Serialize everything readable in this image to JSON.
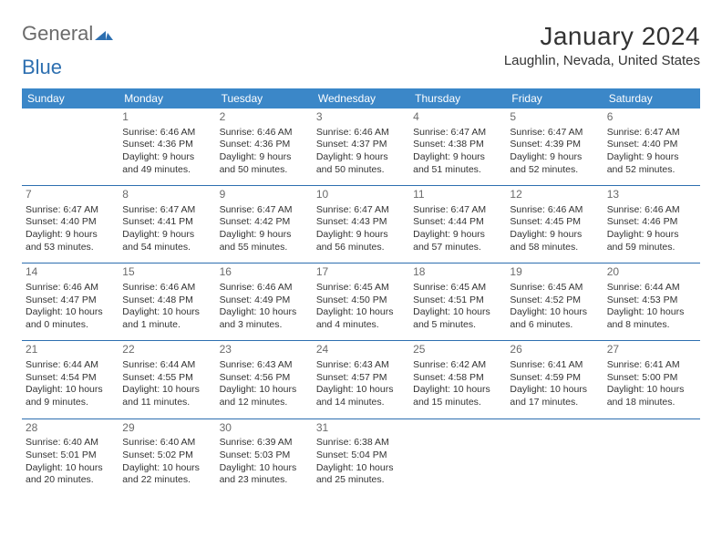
{
  "logo": {
    "general": "General",
    "blue": "Blue",
    "tri_color": "#2d6fb0"
  },
  "title": "January 2024",
  "subtitle": "Laughlin, Nevada, United States",
  "header_bg": "#3b87c8",
  "divider_color": "#2d6fb0",
  "weekdays": [
    "Sunday",
    "Monday",
    "Tuesday",
    "Wednesday",
    "Thursday",
    "Friday",
    "Saturday"
  ],
  "weeks": [
    [
      null,
      {
        "n": "1",
        "sr": "Sunrise: 6:46 AM",
        "ss": "Sunset: 4:36 PM",
        "d1": "Daylight: 9 hours",
        "d2": "and 49 minutes."
      },
      {
        "n": "2",
        "sr": "Sunrise: 6:46 AM",
        "ss": "Sunset: 4:36 PM",
        "d1": "Daylight: 9 hours",
        "d2": "and 50 minutes."
      },
      {
        "n": "3",
        "sr": "Sunrise: 6:46 AM",
        "ss": "Sunset: 4:37 PM",
        "d1": "Daylight: 9 hours",
        "d2": "and 50 minutes."
      },
      {
        "n": "4",
        "sr": "Sunrise: 6:47 AM",
        "ss": "Sunset: 4:38 PM",
        "d1": "Daylight: 9 hours",
        "d2": "and 51 minutes."
      },
      {
        "n": "5",
        "sr": "Sunrise: 6:47 AM",
        "ss": "Sunset: 4:39 PM",
        "d1": "Daylight: 9 hours",
        "d2": "and 52 minutes."
      },
      {
        "n": "6",
        "sr": "Sunrise: 6:47 AM",
        "ss": "Sunset: 4:40 PM",
        "d1": "Daylight: 9 hours",
        "d2": "and 52 minutes."
      }
    ],
    [
      {
        "n": "7",
        "sr": "Sunrise: 6:47 AM",
        "ss": "Sunset: 4:40 PM",
        "d1": "Daylight: 9 hours",
        "d2": "and 53 minutes."
      },
      {
        "n": "8",
        "sr": "Sunrise: 6:47 AM",
        "ss": "Sunset: 4:41 PM",
        "d1": "Daylight: 9 hours",
        "d2": "and 54 minutes."
      },
      {
        "n": "9",
        "sr": "Sunrise: 6:47 AM",
        "ss": "Sunset: 4:42 PM",
        "d1": "Daylight: 9 hours",
        "d2": "and 55 minutes."
      },
      {
        "n": "10",
        "sr": "Sunrise: 6:47 AM",
        "ss": "Sunset: 4:43 PM",
        "d1": "Daylight: 9 hours",
        "d2": "and 56 minutes."
      },
      {
        "n": "11",
        "sr": "Sunrise: 6:47 AM",
        "ss": "Sunset: 4:44 PM",
        "d1": "Daylight: 9 hours",
        "d2": "and 57 minutes."
      },
      {
        "n": "12",
        "sr": "Sunrise: 6:46 AM",
        "ss": "Sunset: 4:45 PM",
        "d1": "Daylight: 9 hours",
        "d2": "and 58 minutes."
      },
      {
        "n": "13",
        "sr": "Sunrise: 6:46 AM",
        "ss": "Sunset: 4:46 PM",
        "d1": "Daylight: 9 hours",
        "d2": "and 59 minutes."
      }
    ],
    [
      {
        "n": "14",
        "sr": "Sunrise: 6:46 AM",
        "ss": "Sunset: 4:47 PM",
        "d1": "Daylight: 10 hours",
        "d2": "and 0 minutes."
      },
      {
        "n": "15",
        "sr": "Sunrise: 6:46 AM",
        "ss": "Sunset: 4:48 PM",
        "d1": "Daylight: 10 hours",
        "d2": "and 1 minute."
      },
      {
        "n": "16",
        "sr": "Sunrise: 6:46 AM",
        "ss": "Sunset: 4:49 PM",
        "d1": "Daylight: 10 hours",
        "d2": "and 3 minutes."
      },
      {
        "n": "17",
        "sr": "Sunrise: 6:45 AM",
        "ss": "Sunset: 4:50 PM",
        "d1": "Daylight: 10 hours",
        "d2": "and 4 minutes."
      },
      {
        "n": "18",
        "sr": "Sunrise: 6:45 AM",
        "ss": "Sunset: 4:51 PM",
        "d1": "Daylight: 10 hours",
        "d2": "and 5 minutes."
      },
      {
        "n": "19",
        "sr": "Sunrise: 6:45 AM",
        "ss": "Sunset: 4:52 PM",
        "d1": "Daylight: 10 hours",
        "d2": "and 6 minutes."
      },
      {
        "n": "20",
        "sr": "Sunrise: 6:44 AM",
        "ss": "Sunset: 4:53 PM",
        "d1": "Daylight: 10 hours",
        "d2": "and 8 minutes."
      }
    ],
    [
      {
        "n": "21",
        "sr": "Sunrise: 6:44 AM",
        "ss": "Sunset: 4:54 PM",
        "d1": "Daylight: 10 hours",
        "d2": "and 9 minutes."
      },
      {
        "n": "22",
        "sr": "Sunrise: 6:44 AM",
        "ss": "Sunset: 4:55 PM",
        "d1": "Daylight: 10 hours",
        "d2": "and 11 minutes."
      },
      {
        "n": "23",
        "sr": "Sunrise: 6:43 AM",
        "ss": "Sunset: 4:56 PM",
        "d1": "Daylight: 10 hours",
        "d2": "and 12 minutes."
      },
      {
        "n": "24",
        "sr": "Sunrise: 6:43 AM",
        "ss": "Sunset: 4:57 PM",
        "d1": "Daylight: 10 hours",
        "d2": "and 14 minutes."
      },
      {
        "n": "25",
        "sr": "Sunrise: 6:42 AM",
        "ss": "Sunset: 4:58 PM",
        "d1": "Daylight: 10 hours",
        "d2": "and 15 minutes."
      },
      {
        "n": "26",
        "sr": "Sunrise: 6:41 AM",
        "ss": "Sunset: 4:59 PM",
        "d1": "Daylight: 10 hours",
        "d2": "and 17 minutes."
      },
      {
        "n": "27",
        "sr": "Sunrise: 6:41 AM",
        "ss": "Sunset: 5:00 PM",
        "d1": "Daylight: 10 hours",
        "d2": "and 18 minutes."
      }
    ],
    [
      {
        "n": "28",
        "sr": "Sunrise: 6:40 AM",
        "ss": "Sunset: 5:01 PM",
        "d1": "Daylight: 10 hours",
        "d2": "and 20 minutes."
      },
      {
        "n": "29",
        "sr": "Sunrise: 6:40 AM",
        "ss": "Sunset: 5:02 PM",
        "d1": "Daylight: 10 hours",
        "d2": "and 22 minutes."
      },
      {
        "n": "30",
        "sr": "Sunrise: 6:39 AM",
        "ss": "Sunset: 5:03 PM",
        "d1": "Daylight: 10 hours",
        "d2": "and 23 minutes."
      },
      {
        "n": "31",
        "sr": "Sunrise: 6:38 AM",
        "ss": "Sunset: 5:04 PM",
        "d1": "Daylight: 10 hours",
        "d2": "and 25 minutes."
      },
      null,
      null,
      null
    ]
  ]
}
